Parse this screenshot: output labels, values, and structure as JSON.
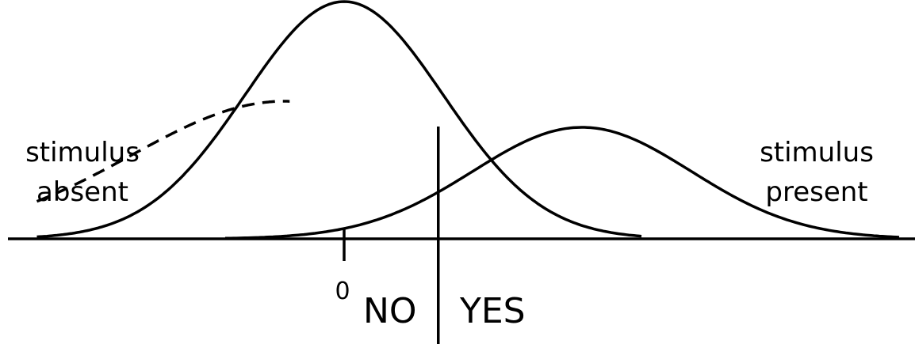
{
  "diagram": {
    "curves": [
      {
        "name": "noise-distribution",
        "type": "gaussian",
        "mean": 0,
        "sd": 1.0,
        "peak": 1.0,
        "style": "solid"
      },
      {
        "name": "signal-distribution",
        "type": "gaussian",
        "mean": 2.4,
        "sd": 1.1,
        "peak": 0.47,
        "style": "solid"
      },
      {
        "name": "left-tail-extension",
        "type": "gaussian",
        "mean": -0.6,
        "sd": 1.55,
        "peak": 0.58,
        "style": "dashed",
        "from": -3.1,
        "to": -0.55
      }
    ],
    "criterion": 0.95,
    "zero_tick": 0,
    "x_range": [
      -3.1,
      5.6
    ],
    "stroke_color": "#000000"
  },
  "labels": {
    "left": [
      "stimulus",
      "absent"
    ],
    "right": [
      "stimulus",
      "present"
    ],
    "no": "NO",
    "yes": "YES",
    "zero": "0"
  }
}
